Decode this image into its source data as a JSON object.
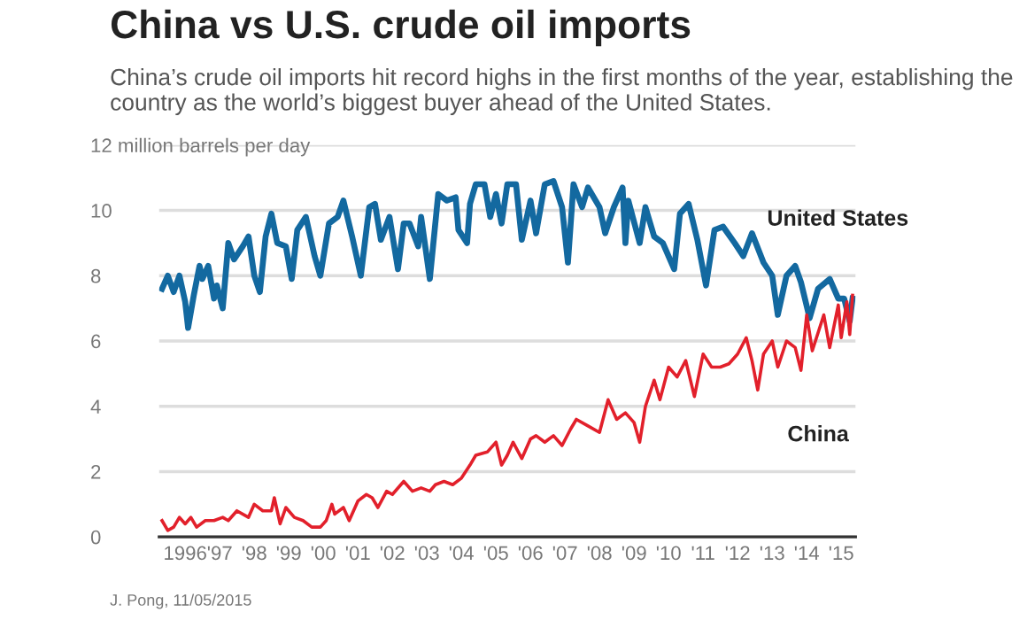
{
  "chart_data": {
    "type": "line",
    "title": "China vs U.S. crude oil imports",
    "subtitle": "China’s crude oil imports hit record highs in the first months of the year, establishing the country as the world’s biggest buyer ahead of the United States.",
    "annotations": [
      "J. Pong, 11/05/2015"
    ],
    "xlim": [
      "1995-04",
      "2015-06"
    ],
    "xticks": [
      {
        "value": "1996-01",
        "label": "1996"
      },
      {
        "value": "1997-01",
        "label": "'97"
      },
      {
        "value": "1998-01",
        "label": "'98"
      },
      {
        "value": "1999-01",
        "label": "'99"
      },
      {
        "value": "2000-01",
        "label": "'00"
      },
      {
        "value": "2001-01",
        "label": "'01"
      },
      {
        "value": "2002-01",
        "label": "'02"
      },
      {
        "value": "2003-01",
        "label": "'03"
      },
      {
        "value": "2004-01",
        "label": "'04"
      },
      {
        "value": "2005-01",
        "label": "'05"
      },
      {
        "value": "2006-01",
        "label": "'06"
      },
      {
        "value": "2007-01",
        "label": "'07"
      },
      {
        "value": "2008-01",
        "label": "'08"
      },
      {
        "value": "2009-01",
        "label": "'09"
      },
      {
        "value": "2010-01",
        "label": "'10"
      },
      {
        "value": "2011-01",
        "label": "'11"
      },
      {
        "value": "2012-01",
        "label": "'12"
      },
      {
        "value": "2013-01",
        "label": "'13"
      },
      {
        "value": "2014-01",
        "label": "'14"
      },
      {
        "value": "2015-01",
        "label": "'15"
      }
    ],
    "ylim": [
      0,
      12
    ],
    "yticks": [
      0,
      2,
      4,
      6,
      8,
      10,
      {
        "value": 12,
        "label": "12 million barrels per day"
      }
    ],
    "grid": "y",
    "series": [
      {
        "name": "United States",
        "color": "#1369a0",
        "x": [
          "1995-05",
          "1995-07",
          "1995-09",
          "1995-11",
          "1996-01",
          "1996-02",
          "1996-04",
          "1996-06",
          "1996-07",
          "1996-09",
          "1996-11",
          "1996-12",
          "1997-02",
          "1997-04",
          "1997-06",
          "1997-09",
          "1997-11",
          "1998-01",
          "1998-03",
          "1998-05",
          "1998-07",
          "1998-09",
          "1998-12",
          "1999-02",
          "1999-04",
          "1999-07",
          "1999-10",
          "1999-12",
          "2000-03",
          "2000-06",
          "2000-08",
          "2000-11",
          "2001-02",
          "2001-05",
          "2001-07",
          "2001-09",
          "2001-12",
          "2002-03",
          "2002-05",
          "2002-07",
          "2002-10",
          "2002-11",
          "2003-02",
          "2003-05",
          "2003-08",
          "2003-11",
          "2003-12",
          "2004-03",
          "2004-04",
          "2004-06",
          "2004-09",
          "2004-11",
          "2005-01",
          "2005-03",
          "2005-05",
          "2005-08",
          "2005-10",
          "2006-01",
          "2006-03",
          "2006-06",
          "2006-09",
          "2006-12",
          "2007-02",
          "2007-04",
          "2007-07",
          "2007-09",
          "2008-01",
          "2008-03",
          "2008-06",
          "2008-09",
          "2008-10",
          "2008-11",
          "2009-03",
          "2009-05",
          "2009-08",
          "2009-11",
          "2010-03",
          "2010-05",
          "2010-08",
          "2010-11",
          "2011-02",
          "2011-05",
          "2011-08",
          "2011-12",
          "2012-03",
          "2012-06",
          "2012-10",
          "2013-01",
          "2013-03",
          "2013-06",
          "2013-09",
          "2013-11",
          "2014-02",
          "2014-05",
          "2014-09",
          "2014-12",
          "2015-02",
          "2015-04",
          "2015-05"
        ],
        "values": [
          7.6,
          8.0,
          7.5,
          8.0,
          7.2,
          6.4,
          7.4,
          8.3,
          7.9,
          8.3,
          7.3,
          7.7,
          7.0,
          9.0,
          8.5,
          8.9,
          9.2,
          8.0,
          7.5,
          9.2,
          9.9,
          9.0,
          8.9,
          7.9,
          9.4,
          9.8,
          8.6,
          8.0,
          9.6,
          9.8,
          10.3,
          9.2,
          8.0,
          10.1,
          10.2,
          9.1,
          9.8,
          8.2,
          9.6,
          9.6,
          8.9,
          9.8,
          7.9,
          10.5,
          10.3,
          10.4,
          9.4,
          9.0,
          10.2,
          10.8,
          10.8,
          9.8,
          10.5,
          9.6,
          10.8,
          10.8,
          9.1,
          10.3,
          9.3,
          10.8,
          10.9,
          10.1,
          8.4,
          10.8,
          10.1,
          10.7,
          10.1,
          9.3,
          10.1,
          10.7,
          9.0,
          10.3,
          9.0,
          10.1,
          9.2,
          9.0,
          8.2,
          9.9,
          10.2,
          9.1,
          7.7,
          9.4,
          9.5,
          9.0,
          8.6,
          9.3,
          8.4,
          8.0,
          6.8,
          8.0,
          8.3,
          7.8,
          6.7,
          7.6,
          7.9,
          7.3,
          7.3,
          6.6,
          7.3
        ]
      },
      {
        "name": "China",
        "color": "#e2202b",
        "x": [
          "1995-05",
          "1995-07",
          "1995-09",
          "1995-11",
          "1996-01",
          "1996-03",
          "1996-05",
          "1996-08",
          "1996-11",
          "1997-02",
          "1997-04",
          "1997-07",
          "1997-11",
          "1998-01",
          "1998-04",
          "1998-07",
          "1998-08",
          "1998-10",
          "1998-12",
          "1999-03",
          "1999-06",
          "1999-09",
          "1999-12",
          "2000-02",
          "2000-04",
          "2000-05",
          "2000-08",
          "2000-10",
          "2001-01",
          "2001-04",
          "2001-06",
          "2001-08",
          "2001-11",
          "2002-01",
          "2002-05",
          "2002-08",
          "2002-11",
          "2003-02",
          "2003-04",
          "2003-07",
          "2003-10",
          "2004-01",
          "2004-04",
          "2004-06",
          "2004-10",
          "2005-01",
          "2005-03",
          "2005-05",
          "2005-07",
          "2005-10",
          "2006-01",
          "2006-03",
          "2006-06",
          "2006-09",
          "2006-12",
          "2007-03",
          "2007-05",
          "2007-09",
          "2008-01",
          "2008-04",
          "2008-07",
          "2008-10",
          "2009-01",
          "2009-03",
          "2009-05",
          "2009-08",
          "2009-10",
          "2010-01",
          "2010-04",
          "2010-07",
          "2010-10",
          "2011-01",
          "2011-04",
          "2011-07",
          "2011-10",
          "2012-01",
          "2012-04",
          "2012-06",
          "2012-08",
          "2012-10",
          "2013-01",
          "2013-03",
          "2013-06",
          "2013-09",
          "2013-11",
          "2014-01",
          "2014-03",
          "2014-07",
          "2014-09",
          "2014-12",
          "2015-01",
          "2015-03",
          "2015-04",
          "2015-05"
        ],
        "values": [
          0.5,
          0.2,
          0.3,
          0.6,
          0.4,
          0.6,
          0.3,
          0.5,
          0.5,
          0.6,
          0.5,
          0.8,
          0.6,
          1.0,
          0.8,
          0.8,
          1.2,
          0.4,
          0.9,
          0.6,
          0.5,
          0.3,
          0.3,
          0.5,
          1.0,
          0.7,
          0.9,
          0.5,
          1.1,
          1.3,
          1.2,
          0.9,
          1.4,
          1.3,
          1.7,
          1.4,
          1.5,
          1.4,
          1.6,
          1.7,
          1.6,
          1.8,
          2.2,
          2.5,
          2.6,
          2.9,
          2.2,
          2.5,
          2.9,
          2.4,
          3.0,
          3.1,
          2.9,
          3.1,
          2.8,
          3.3,
          3.6,
          3.4,
          3.2,
          4.2,
          3.6,
          3.8,
          3.5,
          2.9,
          4.0,
          4.8,
          4.2,
          5.2,
          4.9,
          5.4,
          4.3,
          5.6,
          5.2,
          5.2,
          5.3,
          5.6,
          6.1,
          5.4,
          4.5,
          5.6,
          6.0,
          5.2,
          6.0,
          5.8,
          5.1,
          6.8,
          5.7,
          6.8,
          5.8,
          7.1,
          6.1,
          7.2,
          6.2,
          7.4
        ]
      }
    ]
  }
}
